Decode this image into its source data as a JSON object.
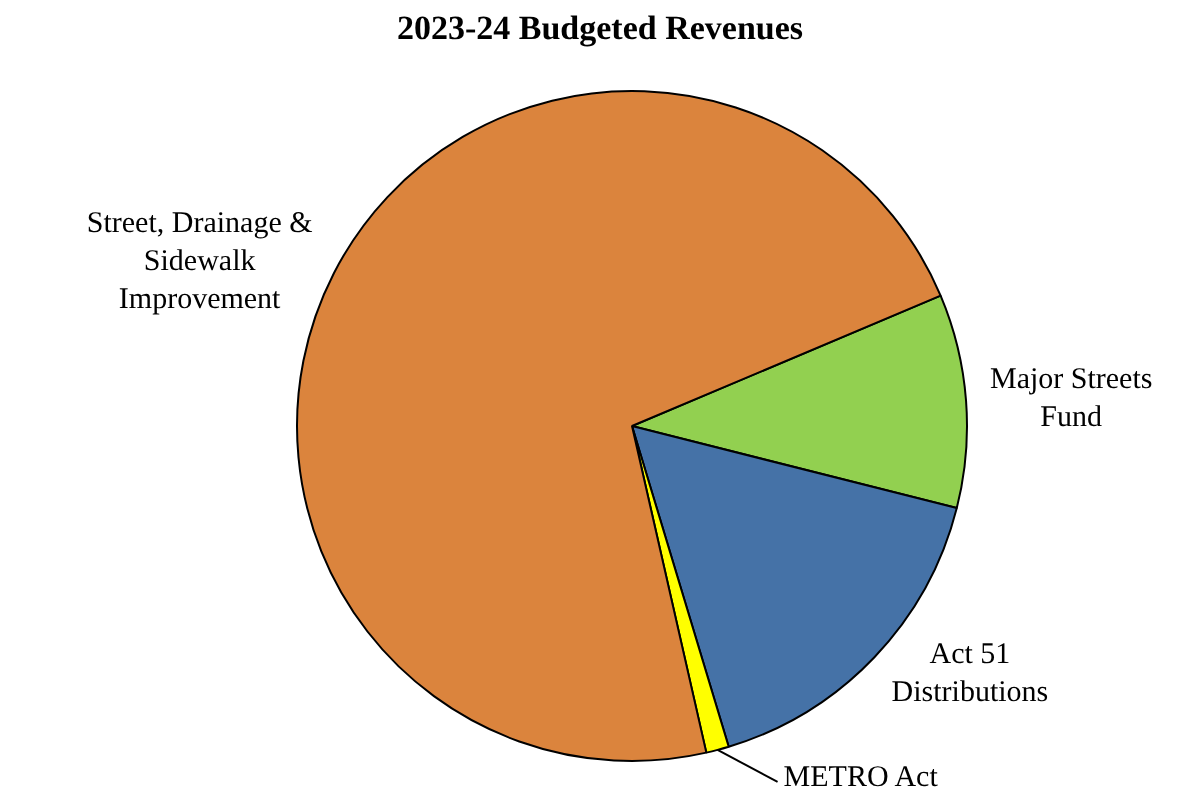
{
  "chart_data": {
    "type": "pie",
    "title": "2023-24 Budgeted Revenues",
    "categories": [
      "Major Streets Fund",
      "Act 51 Distributions",
      "METRO Act",
      "Street, Drainage & Sidewalk Improvement"
    ],
    "values": [
      10.3,
      16.4,
      1.1,
      72.2
    ],
    "colors": [
      "#92d050",
      "#4572a7",
      "#ffff00",
      "#db843d"
    ],
    "legend": false
  }
}
